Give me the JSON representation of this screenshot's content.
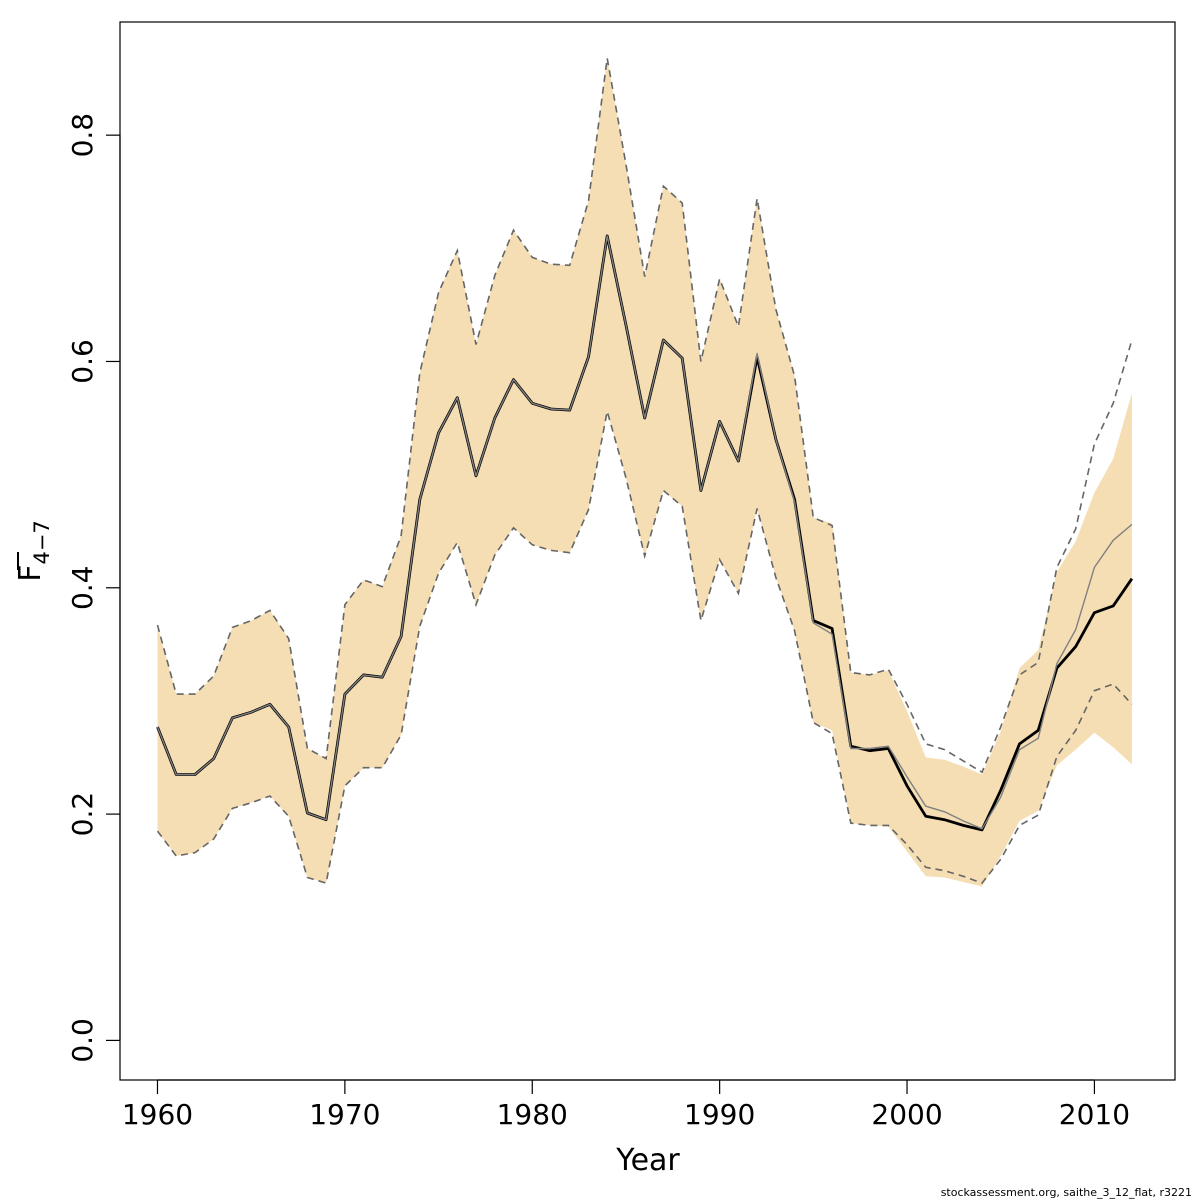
{
  "chart_data": {
    "type": "line",
    "title": "",
    "xlabel": "Year",
    "ylabel": "F",
    "ylabel_subscript": "4−7",
    "xlim": [
      1958,
      2014.3
    ],
    "ylim": [
      -0.035,
      0.9
    ],
    "x_ticks": [
      1960,
      1970,
      1980,
      1990,
      2000,
      2010
    ],
    "y_ticks": [
      0.0,
      0.2,
      0.4,
      0.6,
      0.8
    ],
    "x_tick_labels": [
      "1960",
      "1970",
      "1980",
      "1990",
      "2000",
      "2010"
    ],
    "y_tick_labels": [
      "0.0",
      "0.2",
      "0.4",
      "0.6",
      "0.8"
    ],
    "grid": false,
    "legend": "none",
    "credit": "stockassessment.org, saithe_3_12_flat, r3221",
    "colors": {
      "band_fill": "#F5DEB3",
      "current_line": "#000000",
      "previous_line": "#808080",
      "previous_ci": "#666666",
      "axis": "#000000"
    },
    "series": [
      {
        "role": "current-estimate",
        "x": [
          1960,
          1961,
          1962,
          1963,
          1964,
          1965,
          1966,
          1967,
          1968,
          1969,
          1970,
          1971,
          1972,
          1973,
          1974,
          1975,
          1976,
          1977,
          1978,
          1979,
          1980,
          1981,
          1982,
          1983,
          1984,
          1985,
          1986,
          1987,
          1988,
          1989,
          1990,
          1991,
          1992,
          1993,
          1994,
          1995,
          1996,
          1997,
          1998,
          1999,
          2000,
          2001,
          2002,
          2003,
          2004,
          2005,
          2006,
          2007,
          2008,
          2009,
          2010,
          2011,
          2012
        ],
        "values": [
          0.277,
          0.235,
          0.235,
          0.249,
          0.285,
          0.29,
          0.297,
          0.277,
          0.201,
          0.195,
          0.306,
          0.323,
          0.321,
          0.357,
          0.478,
          0.537,
          0.568,
          0.499,
          0.55,
          0.584,
          0.563,
          0.558,
          0.557,
          0.604,
          0.711,
          0.632,
          0.55,
          0.619,
          0.603,
          0.486,
          0.547,
          0.512,
          0.604,
          0.531,
          0.478,
          0.371,
          0.364,
          0.26,
          0.256,
          0.258,
          0.225,
          0.198,
          0.195,
          0.19,
          0.186,
          0.221,
          0.262,
          0.274,
          0.329,
          0.348,
          0.378,
          0.384,
          0.408
        ]
      },
      {
        "role": "current-ci-lower",
        "values": [
          0.185,
          0.163,
          0.166,
          0.178,
          0.205,
          0.21,
          0.216,
          0.198,
          0.144,
          0.139,
          0.225,
          0.241,
          0.241,
          0.27,
          0.366,
          0.413,
          0.44,
          0.385,
          0.429,
          0.453,
          0.438,
          0.433,
          0.431,
          0.469,
          0.556,
          0.497,
          0.428,
          0.486,
          0.472,
          0.371,
          0.425,
          0.395,
          0.47,
          0.409,
          0.362,
          0.281,
          0.274,
          0.192,
          0.19,
          0.189,
          0.167,
          0.145,
          0.144,
          0.14,
          0.136,
          0.163,
          0.194,
          0.203,
          0.243,
          0.257,
          0.272,
          0.259,
          0.244
        ]
      },
      {
        "role": "current-ci-upper",
        "values": [
          0.367,
          0.306,
          0.306,
          0.322,
          0.365,
          0.371,
          0.38,
          0.355,
          0.258,
          0.249,
          0.385,
          0.407,
          0.401,
          0.446,
          0.59,
          0.661,
          0.698,
          0.615,
          0.676,
          0.716,
          0.692,
          0.686,
          0.685,
          0.742,
          0.868,
          0.774,
          0.675,
          0.755,
          0.74,
          0.6,
          0.673,
          0.631,
          0.744,
          0.646,
          0.587,
          0.462,
          0.457,
          0.325,
          0.323,
          0.327,
          0.291,
          0.25,
          0.248,
          0.242,
          0.235,
          0.273,
          0.329,
          0.345,
          0.414,
          0.441,
          0.484,
          0.514,
          0.572
        ]
      },
      {
        "role": "previous-estimate",
        "values": [
          0.277,
          0.235,
          0.235,
          0.249,
          0.285,
          0.29,
          0.297,
          0.277,
          0.201,
          0.195,
          0.306,
          0.323,
          0.321,
          0.357,
          0.478,
          0.537,
          0.568,
          0.499,
          0.55,
          0.584,
          0.563,
          0.558,
          0.557,
          0.604,
          0.711,
          0.632,
          0.55,
          0.619,
          0.603,
          0.486,
          0.547,
          0.512,
          0.607,
          0.531,
          0.476,
          0.369,
          0.359,
          0.258,
          0.258,
          0.26,
          0.233,
          0.207,
          0.202,
          0.194,
          0.187,
          0.215,
          0.257,
          0.267,
          0.333,
          0.363,
          0.418,
          0.442,
          0.456
        ]
      },
      {
        "role": "previous-ci-lower",
        "values": [
          0.185,
          0.163,
          0.166,
          0.178,
          0.205,
          0.21,
          0.216,
          0.198,
          0.144,
          0.139,
          0.225,
          0.241,
          0.241,
          0.27,
          0.366,
          0.413,
          0.44,
          0.385,
          0.429,
          0.453,
          0.438,
          0.433,
          0.431,
          0.469,
          0.556,
          0.497,
          0.428,
          0.486,
          0.472,
          0.371,
          0.425,
          0.395,
          0.47,
          0.409,
          0.362,
          0.281,
          0.271,
          0.192,
          0.19,
          0.19,
          0.173,
          0.153,
          0.15,
          0.145,
          0.139,
          0.16,
          0.19,
          0.199,
          0.251,
          0.274,
          0.309,
          0.315,
          0.297
        ]
      },
      {
        "role": "previous-ci-upper",
        "values": [
          0.367,
          0.306,
          0.306,
          0.322,
          0.365,
          0.371,
          0.38,
          0.355,
          0.258,
          0.249,
          0.385,
          0.407,
          0.401,
          0.446,
          0.59,
          0.661,
          0.698,
          0.615,
          0.676,
          0.716,
          0.692,
          0.686,
          0.685,
          0.742,
          0.868,
          0.774,
          0.675,
          0.755,
          0.74,
          0.6,
          0.673,
          0.631,
          0.744,
          0.646,
          0.587,
          0.462,
          0.455,
          0.325,
          0.323,
          0.328,
          0.297,
          0.262,
          0.257,
          0.247,
          0.237,
          0.277,
          0.323,
          0.334,
          0.418,
          0.452,
          0.527,
          0.563,
          0.619
        ]
      }
    ]
  }
}
